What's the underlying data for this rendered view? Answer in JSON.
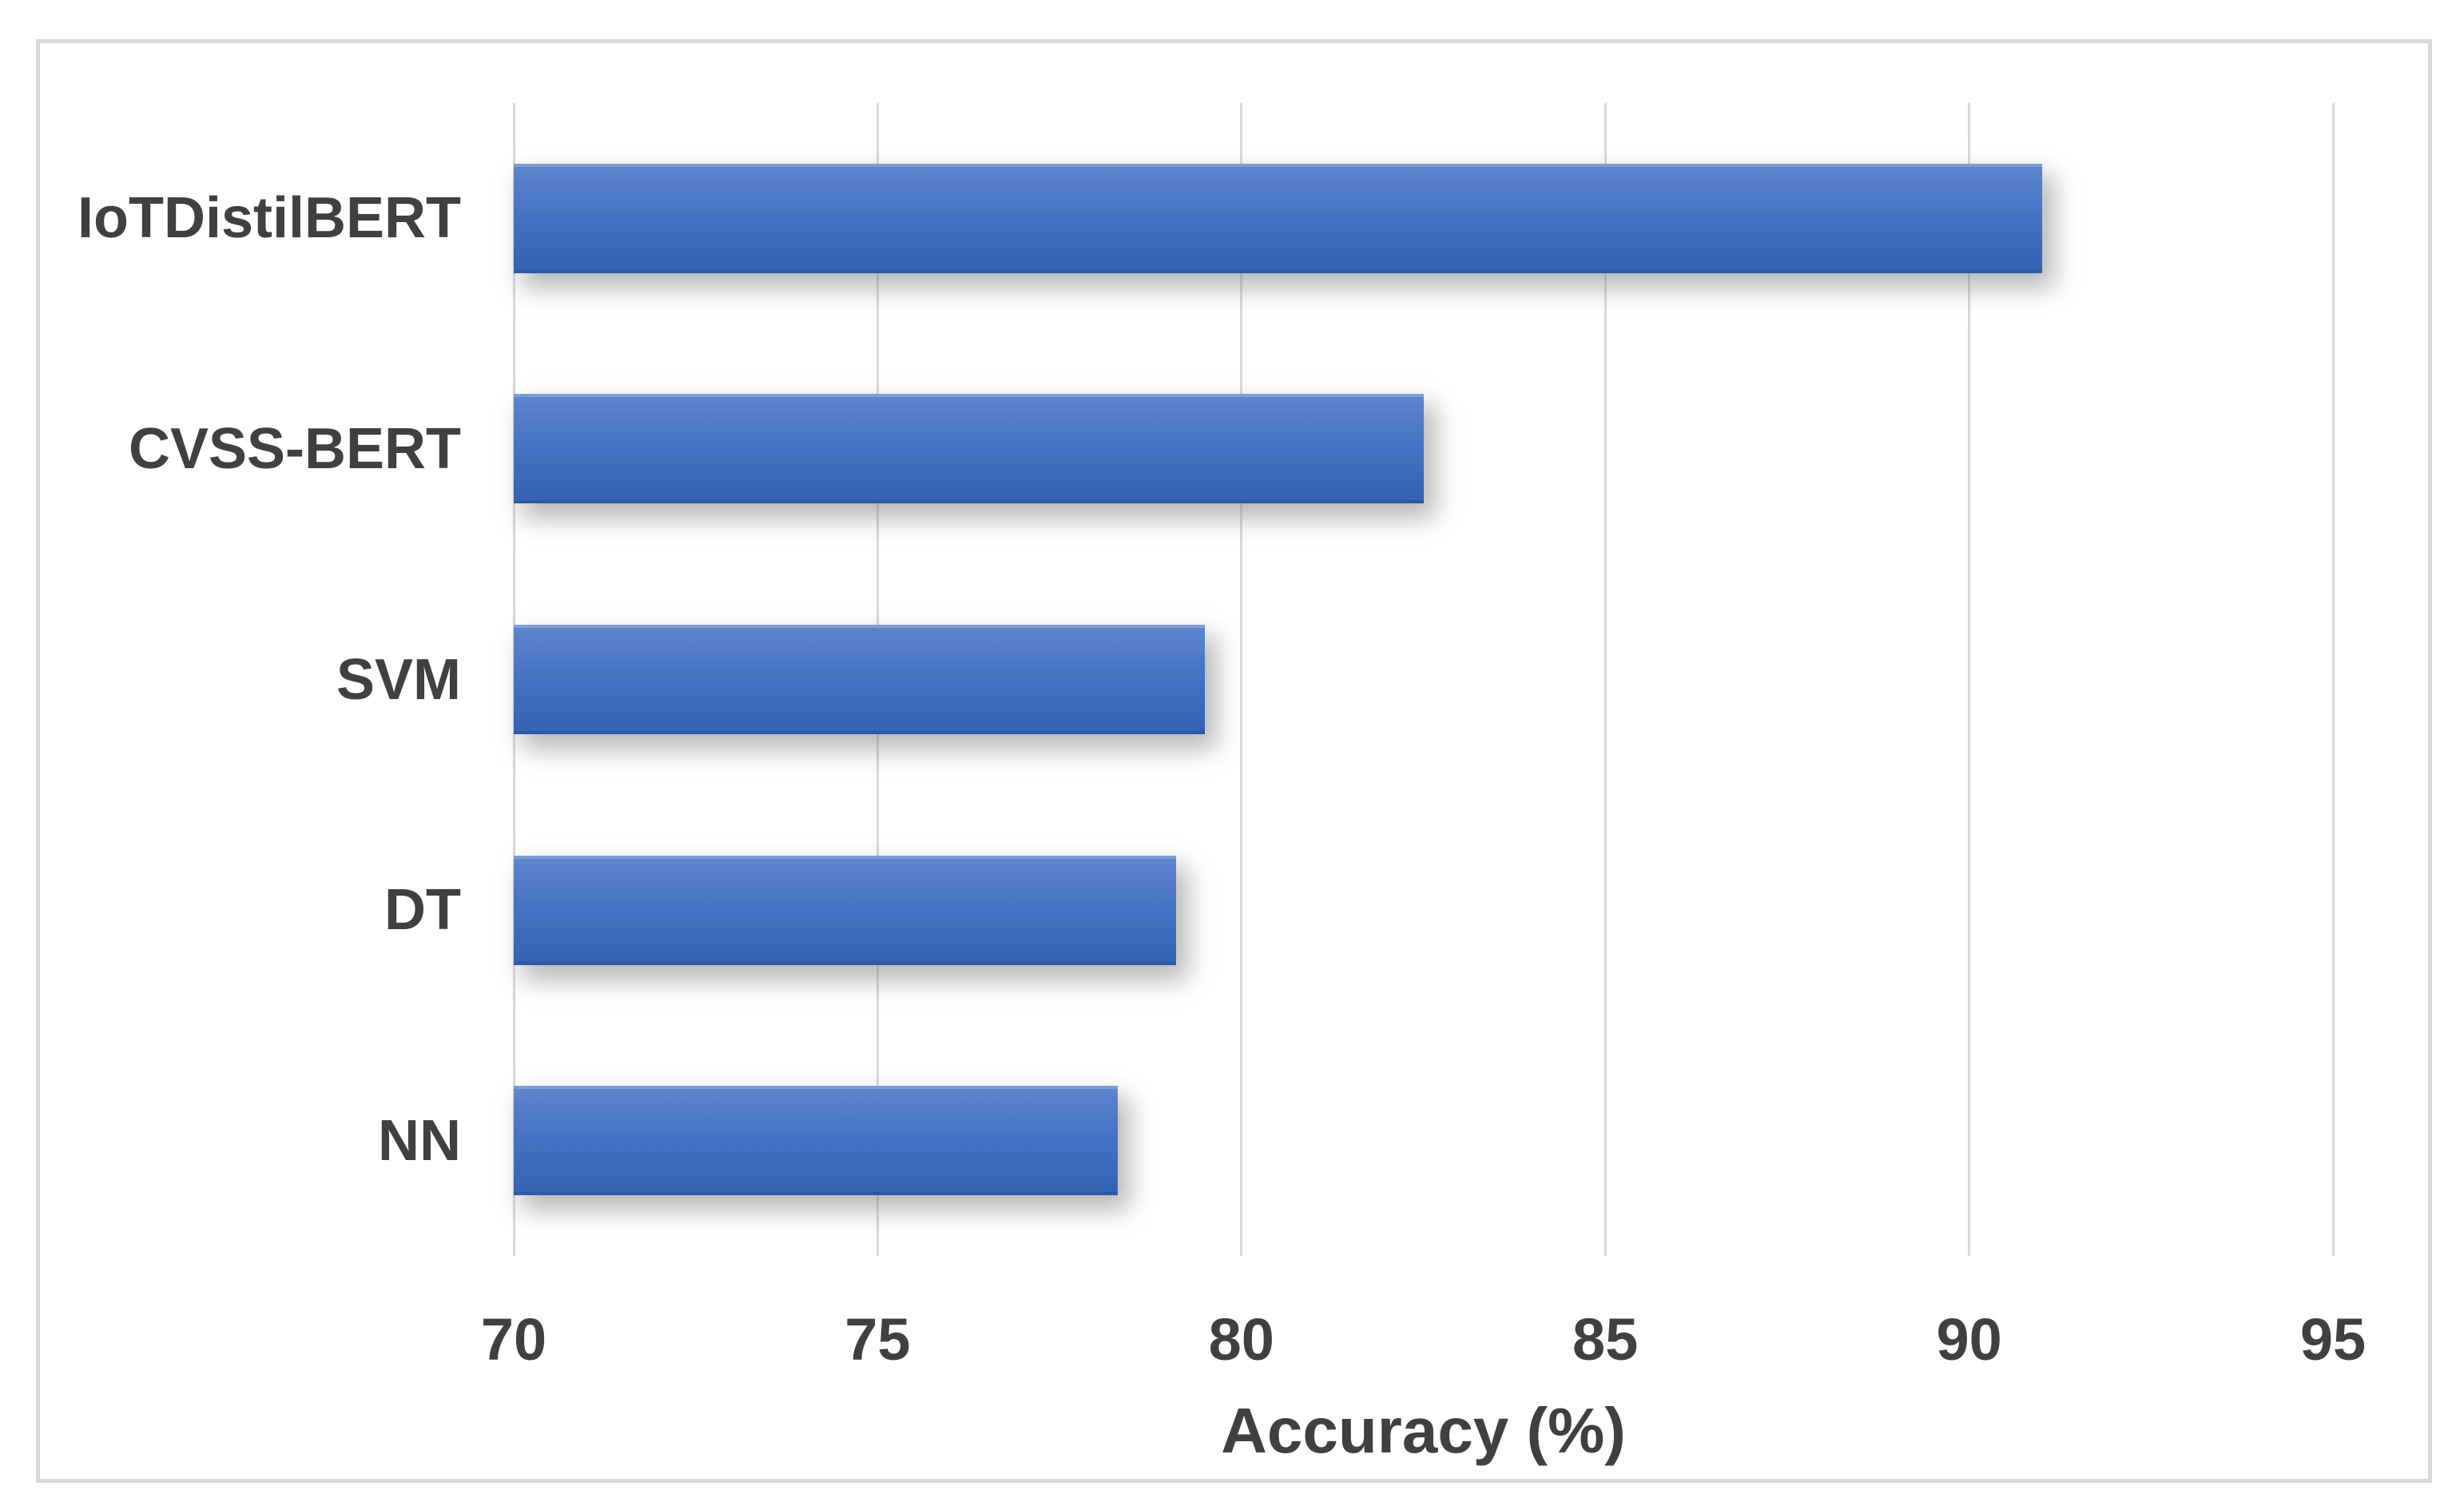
{
  "figure": {
    "background": "#ffffff",
    "frame_border_color": "#d9d9d9"
  },
  "chart_data": {
    "type": "bar",
    "orientation": "horizontal",
    "title": "",
    "xlabel": "Accuracy (%)",
    "ylabel": "",
    "categories": [
      "IoTDistilBERT",
      "CVSS-BERT",
      "SVM",
      "DT",
      "NN"
    ],
    "values": [
      91.0,
      82.5,
      79.5,
      79.1,
      78.3
    ],
    "xlim": [
      70,
      95
    ],
    "xticks": [
      70,
      75,
      80,
      85,
      90,
      95
    ],
    "grid": "vertical-only",
    "legend": "none",
    "bar_color": "#4472c4",
    "bar_gradient_top": "#5e85cd",
    "bar_gradient_mid": "#4472c4",
    "bar_gradient_bottom": "#3463b2",
    "gridline_color": "#d9d9d9",
    "label_color": "#404040"
  }
}
